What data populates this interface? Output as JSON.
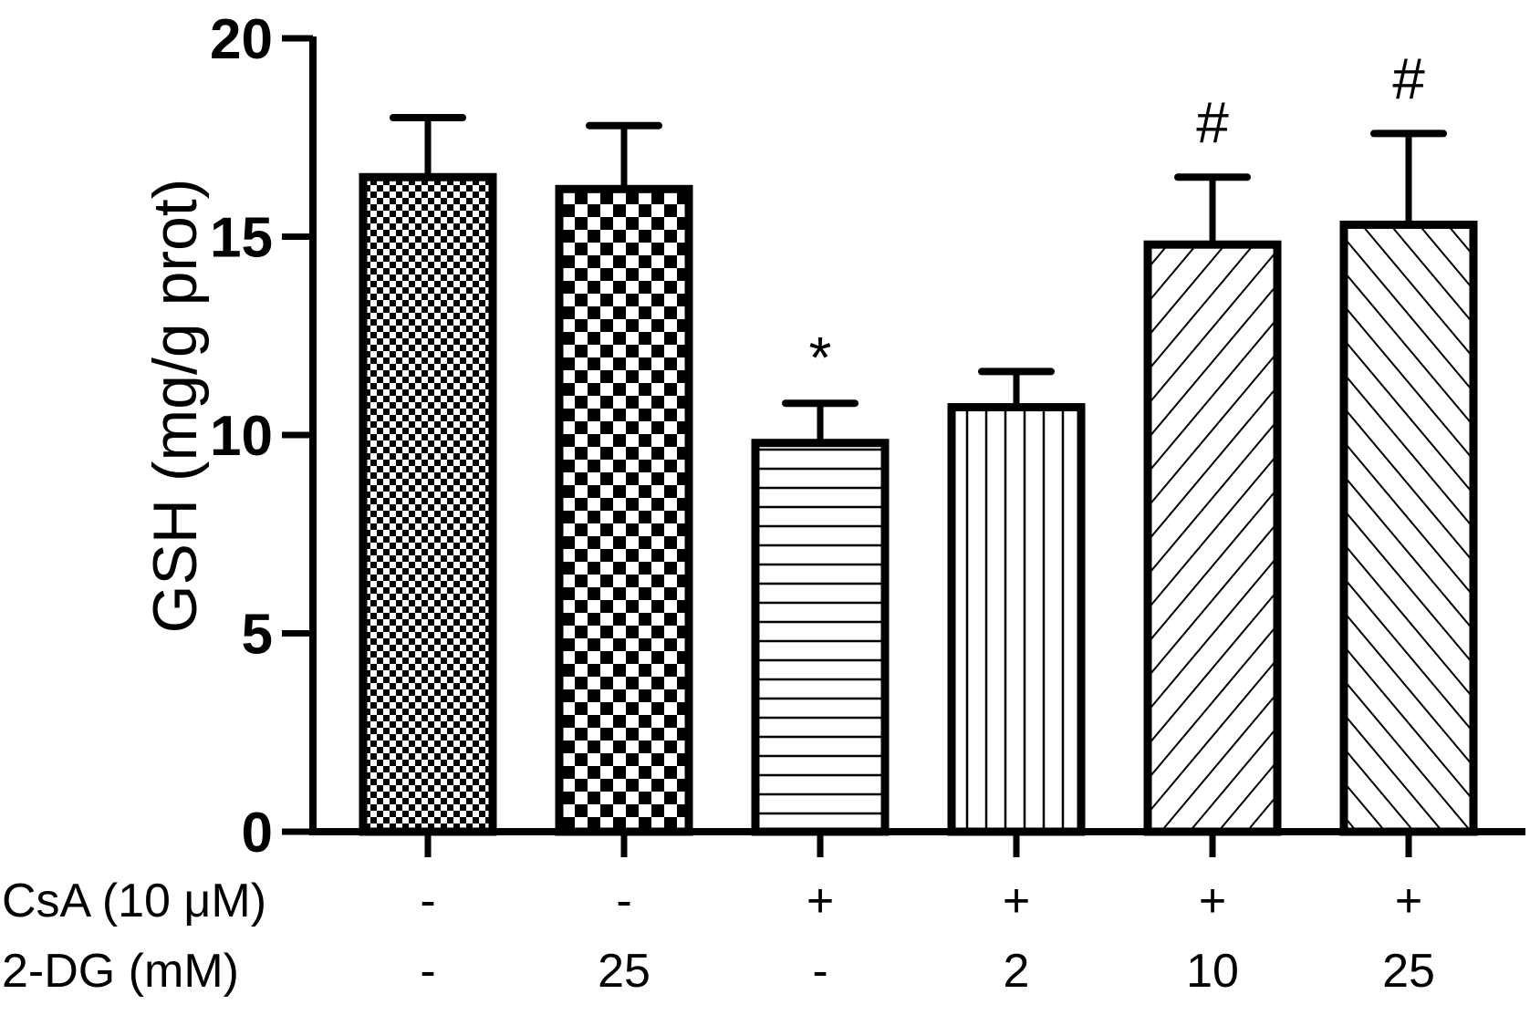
{
  "chart_data": {
    "type": "bar",
    "title": "",
    "xlabel": "",
    "ylabel": "GSH (mg/g prot)",
    "ylim": [
      0,
      20
    ],
    "yticks": [
      0,
      5,
      10,
      15,
      20
    ],
    "grid": false,
    "legend": "none",
    "categories": [
      "CsA -/2-DG -",
      "CsA -/2-DG 25",
      "CsA +/2-DG -",
      "CsA +/2-DG 2",
      "CsA +/2-DG 10",
      "CsA +/2-DG 25"
    ],
    "series": [
      {
        "values": [
          16.5,
          16.2,
          9.8,
          10.7,
          14.8,
          15.3
        ],
        "error": [
          1.5,
          1.6,
          1.0,
          0.9,
          1.7,
          2.3
        ],
        "annotations": [
          "",
          "",
          "*",
          "",
          "#",
          "#"
        ],
        "patterns": [
          "fine-check",
          "coarse-check",
          "horizontal",
          "vertical",
          "diag-right",
          "diag-left"
        ]
      }
    ],
    "condition_rows": [
      {
        "label": "CsA (10 μM)",
        "values": [
          "-",
          "-",
          "+",
          "+",
          "+",
          "+"
        ]
      },
      {
        "label": "2-DG (mM)",
        "values": [
          "-",
          "25",
          "-",
          "2",
          "10",
          "25"
        ]
      }
    ]
  }
}
